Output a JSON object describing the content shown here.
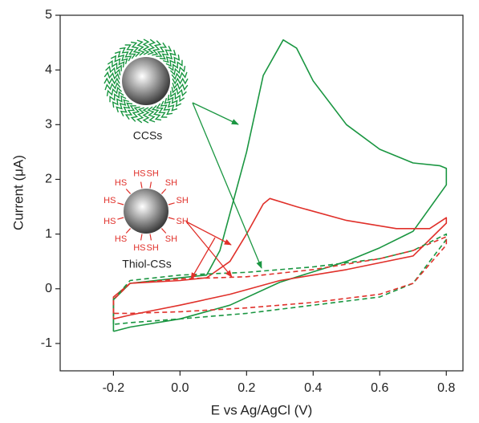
{
  "chart_data": {
    "type": "line",
    "x_label": "E vs Ag/AgCl (V)",
    "y_label": "Current (μA)",
    "xlim": [
      -0.36,
      0.85
    ],
    "ylim": [
      -1.5,
      5
    ],
    "xticks": [
      -0.2,
      {
        "value": 0,
        "label": "0.0"
      },
      0.2,
      0.4,
      0.6,
      0.8
    ],
    "yticks": [
      -1,
      0,
      1,
      2,
      3,
      4,
      5
    ],
    "series": [
      {
        "color": "#1a9641",
        "dashed": false,
        "x": [
          -0.2,
          -0.2,
          -0.15,
          0.0,
          0.08,
          0.12,
          0.2,
          0.25,
          0.31,
          0.35,
          0.4,
          0.5,
          0.6,
          0.7,
          0.78,
          0.8,
          0.8,
          0.7,
          0.6,
          0.5,
          0.3,
          0.15,
          0.0,
          -0.15,
          -0.2
        ],
        "values": [
          -0.78,
          -0.2,
          0.1,
          0.2,
          0.25,
          0.7,
          2.5,
          3.9,
          4.55,
          4.4,
          3.8,
          3.0,
          2.55,
          2.3,
          2.25,
          2.2,
          1.9,
          1.05,
          0.75,
          0.5,
          0.12,
          -0.3,
          -0.55,
          -0.7,
          -0.78
        ]
      },
      {
        "color": "#e0302a",
        "dashed": false,
        "x": [
          -0.2,
          -0.2,
          -0.15,
          0.0,
          0.08,
          0.15,
          0.2,
          0.25,
          0.27,
          0.35,
          0.5,
          0.65,
          0.75,
          0.8,
          0.8,
          0.7,
          0.5,
          0.3,
          0.15,
          0.0,
          -0.15,
          -0.2
        ],
        "values": [
          -0.55,
          -0.15,
          0.1,
          0.15,
          0.2,
          0.5,
          1.0,
          1.55,
          1.65,
          1.5,
          1.25,
          1.1,
          1.1,
          1.3,
          1.2,
          0.6,
          0.35,
          0.15,
          -0.1,
          -0.3,
          -0.48,
          -0.55
        ]
      },
      {
        "color": "#1a9641",
        "dashed": true,
        "x": [
          -0.2,
          -0.2,
          -0.15,
          0.0,
          0.2,
          0.4,
          0.6,
          0.7,
          0.8,
          0.8,
          0.7,
          0.6,
          0.4,
          0.2,
          0.0,
          -0.15,
          -0.2
        ],
        "values": [
          -0.65,
          -0.2,
          0.15,
          0.25,
          0.3,
          0.4,
          0.55,
          0.7,
          1.0,
          0.9,
          0.1,
          -0.15,
          -0.3,
          -0.45,
          -0.55,
          -0.62,
          -0.65
        ]
      },
      {
        "color": "#e0302a",
        "dashed": true,
        "x": [
          -0.2,
          -0.2,
          -0.15,
          0.0,
          0.2,
          0.4,
          0.6,
          0.7,
          0.8,
          0.8,
          0.7,
          0.6,
          0.4,
          0.2,
          0.0,
          -0.15,
          -0.2
        ],
        "values": [
          -0.45,
          -0.2,
          0.1,
          0.18,
          0.22,
          0.35,
          0.55,
          0.7,
          0.95,
          0.8,
          0.1,
          -0.1,
          -0.25,
          -0.35,
          -0.42,
          -0.45,
          -0.45
        ]
      }
    ],
    "annotations": [
      "CCSs",
      "Thiol-CSs"
    ],
    "thiol_labels": [
      "SH",
      "SH",
      "SH",
      "SH",
      "SH",
      "SH",
      "HS",
      "HS",
      "HS",
      "HS",
      "HS",
      "HS"
    ]
  }
}
